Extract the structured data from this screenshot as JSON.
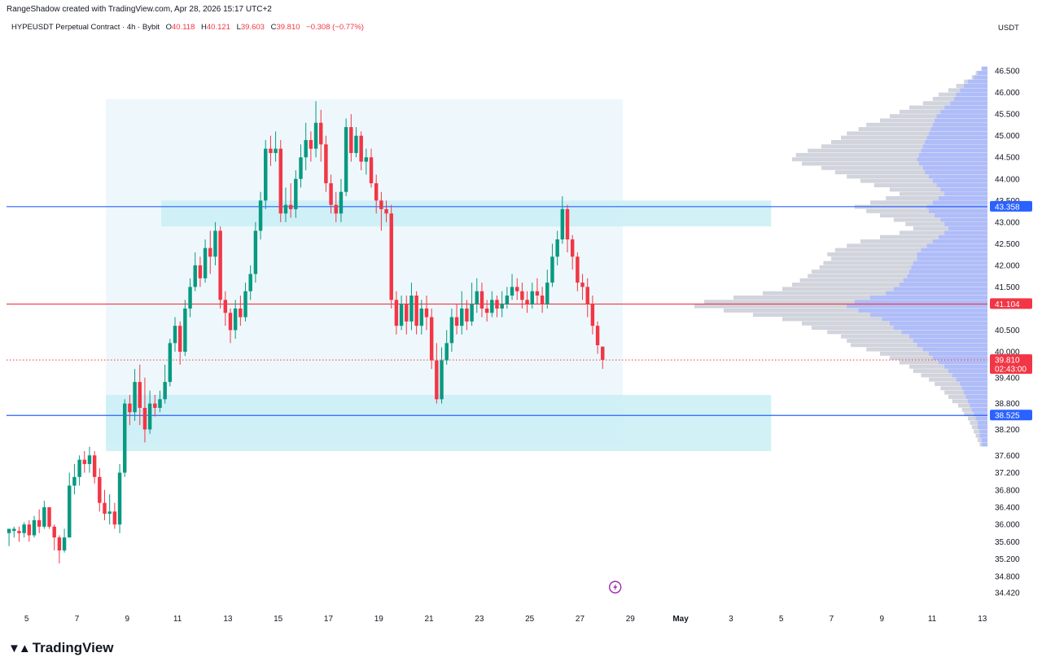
{
  "header": {
    "creator": "RangeShadow created with TradingView.com, Apr 28, 2026 15:17 UTC+2",
    "symbol": "HYPEUSDT Perpetual Contract · 4h · Bybit",
    "open_label": "O",
    "open": "40.118",
    "high_label": "H",
    "high": "40.121",
    "low_label": "L",
    "low": "39.603",
    "close_label": "C",
    "close": "39.810",
    "change": "−0.308 (−0.77%)",
    "currency": "USDT"
  },
  "brand": {
    "name": "TradingView",
    "icon": "tradingview-logo-icon"
  },
  "colors": {
    "up": "#089981",
    "down": "#f23645",
    "zone": "#c9eef6",
    "range_box": "#eef8fc",
    "resistance_line": "#2962ff",
    "poc_line": "#f23645",
    "profile_gray": "#d1d4dc",
    "profile_blue": "#aebcf9"
  },
  "chart_data": {
    "type": "candlestick",
    "title": "HYPEUSDT Perpetual Contract · 4h · Bybit",
    "x_ticks": [
      {
        "d": 5,
        "label": "5"
      },
      {
        "d": 7,
        "label": "7"
      },
      {
        "d": 9,
        "label": "9"
      },
      {
        "d": 11,
        "label": "11"
      },
      {
        "d": 13,
        "label": "13"
      },
      {
        "d": 15,
        "label": "15"
      },
      {
        "d": 17,
        "label": "17"
      },
      {
        "d": 19,
        "label": "19"
      },
      {
        "d": 21,
        "label": "21"
      },
      {
        "d": 23,
        "label": "23"
      },
      {
        "d": 25,
        "label": "25"
      },
      {
        "d": 27,
        "label": "27"
      },
      {
        "d": 29,
        "label": "29"
      },
      {
        "d": 31,
        "label": "May"
      },
      {
        "d": 33,
        "label": "3"
      },
      {
        "d": 35,
        "label": "5"
      },
      {
        "d": 37,
        "label": "7"
      },
      {
        "d": 39,
        "label": "9"
      },
      {
        "d": 41,
        "label": "11"
      },
      {
        "d": 43,
        "label": "13"
      }
    ],
    "y_ticks": [
      "46.500",
      "46.000",
      "45.500",
      "45.000",
      "44.500",
      "44.000",
      "43.500",
      "43.000",
      "42.500",
      "42.000",
      "41.500",
      "40.500",
      "40.000",
      "39.400",
      "38.800",
      "38.200",
      "37.600",
      "37.200",
      "36.800",
      "36.400",
      "36.000",
      "35.600",
      "35.200",
      "34.800",
      "34.420"
    ],
    "ylim": [
      34.1,
      47.2
    ],
    "xlim": [
      4.2,
      43.2
    ],
    "grid": false,
    "price_labels": [
      {
        "value": "43.358",
        "color": "#2962ff"
      },
      {
        "value": "41.104",
        "color": "#f23645"
      },
      {
        "value": "39.810",
        "color": "#f23645",
        "countdown": "02:43:00"
      },
      {
        "value": "38.525",
        "color": "#2962ff"
      }
    ],
    "horizontal_lines": [
      {
        "price": 43.358,
        "color": "#2962ff",
        "style": "solid"
      },
      {
        "price": 41.104,
        "color": "#f23645",
        "style": "solid"
      },
      {
        "price": 38.525,
        "color": "#2962ff",
        "style": "solid"
      },
      {
        "price": 39.81,
        "color": "#f23645",
        "style": "dotted"
      }
    ],
    "zones": [
      {
        "x0": 8.15,
        "x1": 28.7,
        "y0": 37.9,
        "y1": 45.85,
        "kind": "range_box"
      },
      {
        "x0": 10.35,
        "x1": 34.6,
        "y0": 42.9,
        "y1": 43.5,
        "kind": "resistance_zone"
      },
      {
        "x0": 8.15,
        "x1": 34.6,
        "y0": 37.7,
        "y1": 39.0,
        "kind": "support_zone"
      }
    ],
    "anchor_icon": {
      "d": 28.4,
      "price": 34.55,
      "name": "lightning-icon"
    },
    "volume_profile_note": "horizontal volume-by-price profile on the right edge",
    "candles": [
      [
        4.3,
        35.8,
        35.9,
        35.5,
        35.8
      ],
      [
        4.5,
        35.85,
        35.9,
        35.7,
        35.95
      ],
      [
        4.7,
        35.85,
        35.8,
        35.6,
        35.95
      ],
      [
        4.9,
        35.8,
        36.0,
        35.7,
        36.05
      ],
      [
        5.1,
        36.0,
        35.75,
        35.6,
        36.1
      ],
      [
        5.3,
        35.75,
        36.1,
        35.7,
        36.2
      ],
      [
        5.5,
        36.1,
        35.95,
        35.8,
        36.35
      ],
      [
        5.7,
        35.95,
        36.4,
        35.9,
        36.55
      ],
      [
        5.9,
        36.4,
        35.95,
        35.9,
        36.4
      ],
      [
        6.1,
        35.95,
        35.7,
        35.4,
        36.0
      ],
      [
        6.3,
        35.7,
        35.4,
        35.1,
        35.75
      ],
      [
        6.5,
        35.4,
        35.7,
        35.35,
        35.9
      ],
      [
        6.7,
        35.7,
        36.9,
        35.7,
        37.2
      ],
      [
        6.9,
        36.9,
        37.1,
        36.7,
        37.4
      ],
      [
        7.1,
        37.1,
        37.5,
        36.9,
        37.6
      ],
      [
        7.3,
        37.5,
        37.4,
        37.2,
        37.7
      ],
      [
        7.5,
        37.4,
        37.6,
        37.2,
        37.8
      ],
      [
        7.7,
        37.6,
        37.1,
        36.95,
        37.7
      ],
      [
        7.9,
        37.1,
        36.5,
        36.3,
        37.3
      ],
      [
        8.1,
        36.5,
        36.25,
        36.1,
        36.8
      ],
      [
        8.3,
        36.25,
        36.3,
        36.0,
        36.7
      ],
      [
        8.5,
        36.3,
        36.0,
        35.9,
        36.5
      ],
      [
        8.7,
        36.0,
        37.2,
        35.8,
        37.4
      ],
      [
        8.9,
        37.2,
        38.8,
        37.1,
        38.9
      ],
      [
        9.1,
        38.8,
        38.6,
        38.3,
        39.0
      ],
      [
        9.3,
        38.6,
        39.3,
        38.4,
        39.6
      ],
      [
        9.5,
        39.3,
        38.7,
        38.3,
        39.7
      ],
      [
        9.7,
        38.7,
        38.2,
        37.9,
        39.4
      ],
      [
        9.9,
        38.2,
        38.8,
        38.1,
        39.1
      ],
      [
        10.1,
        38.8,
        38.7,
        38.5,
        39.0
      ],
      [
        10.3,
        38.7,
        38.9,
        38.6,
        39.1
      ],
      [
        10.5,
        38.9,
        39.3,
        38.8,
        39.7
      ],
      [
        10.7,
        39.3,
        40.2,
        39.2,
        40.3
      ],
      [
        10.9,
        40.2,
        40.6,
        40.0,
        40.8
      ],
      [
        11.1,
        40.6,
        40.0,
        39.7,
        40.7
      ],
      [
        11.3,
        40.0,
        41.0,
        39.9,
        41.2
      ],
      [
        11.5,
        41.0,
        41.5,
        40.8,
        41.7
      ],
      [
        11.7,
        41.5,
        42.0,
        41.4,
        42.3
      ],
      [
        11.9,
        42.0,
        41.7,
        41.5,
        42.2
      ],
      [
        12.1,
        41.7,
        42.4,
        41.6,
        42.6
      ],
      [
        12.3,
        42.4,
        42.2,
        41.8,
        42.8
      ],
      [
        12.5,
        42.2,
        42.8,
        42.0,
        43.0
      ],
      [
        12.7,
        42.8,
        41.2,
        41.0,
        42.9
      ],
      [
        12.9,
        41.2,
        40.9,
        40.6,
        41.4
      ],
      [
        13.1,
        40.9,
        40.5,
        40.2,
        41.0
      ],
      [
        13.3,
        40.5,
        41.0,
        40.3,
        41.2
      ],
      [
        13.5,
        41.0,
        40.8,
        40.6,
        41.3
      ],
      [
        13.7,
        40.8,
        41.4,
        40.7,
        41.6
      ],
      [
        13.9,
        41.4,
        41.8,
        41.2,
        42.0
      ],
      [
        14.1,
        41.8,
        42.8,
        41.6,
        43.0
      ],
      [
        14.3,
        42.8,
        43.5,
        42.6,
        43.7
      ],
      [
        14.5,
        43.5,
        44.7,
        43.3,
        44.9
      ],
      [
        14.7,
        44.7,
        44.6,
        44.3,
        45.0
      ],
      [
        14.9,
        44.6,
        44.7,
        44.4,
        45.1
      ],
      [
        15.1,
        44.7,
        43.2,
        43.0,
        44.9
      ],
      [
        15.3,
        43.2,
        43.4,
        43.0,
        43.8
      ],
      [
        15.5,
        43.4,
        43.3,
        43.1,
        43.9
      ],
      [
        15.7,
        43.3,
        44.0,
        43.1,
        44.2
      ],
      [
        15.9,
        44.0,
        44.5,
        43.8,
        44.8
      ],
      [
        16.1,
        44.5,
        44.9,
        44.2,
        45.3
      ],
      [
        16.3,
        44.9,
        44.7,
        44.4,
        45.1
      ],
      [
        16.5,
        44.7,
        45.3,
        44.5,
        45.8
      ],
      [
        16.7,
        45.3,
        44.8,
        44.4,
        45.6
      ],
      [
        16.9,
        44.8,
        43.9,
        43.7,
        45.0
      ],
      [
        17.1,
        43.9,
        43.4,
        43.2,
        44.1
      ],
      [
        17.3,
        43.4,
        43.2,
        43.0,
        43.7
      ],
      [
        17.5,
        43.2,
        43.7,
        43.0,
        44.0
      ],
      [
        17.7,
        43.7,
        45.2,
        43.6,
        45.4
      ],
      [
        17.9,
        45.2,
        44.6,
        44.4,
        45.5
      ],
      [
        18.1,
        44.6,
        45.0,
        44.5,
        45.2
      ],
      [
        18.3,
        45.0,
        44.4,
        44.2,
        45.1
      ],
      [
        18.5,
        44.4,
        44.5,
        44.1,
        44.7
      ],
      [
        18.7,
        44.5,
        43.9,
        43.8,
        44.7
      ],
      [
        18.9,
        43.9,
        43.5,
        43.2,
        44.1
      ],
      [
        19.1,
        43.5,
        43.3,
        42.8,
        43.7
      ],
      [
        19.3,
        43.3,
        43.2,
        43.0,
        43.5
      ],
      [
        19.5,
        43.2,
        41.2,
        41.0,
        43.4
      ],
      [
        19.7,
        41.2,
        40.6,
        40.4,
        41.4
      ],
      [
        19.9,
        40.6,
        41.1,
        40.5,
        41.3
      ],
      [
        20.1,
        41.1,
        40.7,
        40.4,
        41.3
      ],
      [
        20.3,
        40.7,
        41.3,
        40.5,
        41.6
      ],
      [
        20.5,
        41.3,
        40.6,
        40.4,
        41.4
      ],
      [
        20.7,
        40.6,
        41.0,
        40.4,
        41.2
      ],
      [
        20.9,
        41.0,
        40.8,
        40.5,
        41.3
      ],
      [
        21.1,
        40.8,
        39.8,
        39.6,
        41.0
      ],
      [
        21.3,
        39.8,
        38.9,
        38.8,
        40.2
      ],
      [
        21.5,
        38.9,
        39.8,
        38.8,
        40.1
      ],
      [
        21.7,
        39.8,
        40.2,
        39.7,
        40.5
      ],
      [
        21.9,
        40.2,
        40.8,
        40.0,
        41.0
      ],
      [
        22.1,
        40.8,
        40.6,
        40.4,
        41.1
      ],
      [
        22.3,
        40.6,
        41.0,
        40.4,
        41.4
      ],
      [
        22.5,
        41.0,
        40.7,
        40.5,
        41.2
      ],
      [
        22.7,
        40.7,
        41.1,
        40.6,
        41.6
      ],
      [
        22.9,
        41.1,
        41.4,
        40.9,
        41.7
      ],
      [
        23.1,
        41.4,
        41.0,
        40.8,
        41.6
      ],
      [
        23.3,
        41.0,
        40.9,
        40.7,
        41.2
      ],
      [
        23.5,
        40.9,
        41.2,
        40.8,
        41.4
      ],
      [
        23.7,
        41.2,
        41.0,
        40.8,
        41.3
      ],
      [
        23.9,
        41.0,
        41.1,
        40.8,
        41.4
      ],
      [
        24.1,
        41.1,
        41.3,
        41.0,
        41.5
      ],
      [
        24.3,
        41.3,
        41.5,
        41.2,
        41.8
      ],
      [
        24.5,
        41.5,
        41.4,
        41.2,
        41.7
      ],
      [
        24.7,
        41.4,
        41.2,
        41.0,
        41.6
      ],
      [
        24.9,
        41.2,
        41.1,
        40.9,
        41.4
      ],
      [
        25.1,
        41.1,
        41.4,
        41.0,
        41.6
      ],
      [
        25.3,
        41.4,
        41.3,
        41.1,
        41.7
      ],
      [
        25.5,
        41.3,
        41.1,
        40.9,
        41.5
      ],
      [
        25.7,
        41.1,
        41.6,
        41.0,
        41.9
      ],
      [
        25.9,
        41.6,
        42.2,
        41.5,
        42.5
      ],
      [
        26.1,
        42.2,
        42.6,
        42.0,
        42.8
      ],
      [
        26.3,
        42.6,
        43.3,
        42.5,
        43.6
      ],
      [
        26.5,
        43.3,
        42.6,
        42.3,
        43.4
      ],
      [
        26.7,
        42.6,
        42.2,
        41.9,
        42.7
      ],
      [
        26.9,
        42.2,
        41.6,
        41.4,
        42.3
      ],
      [
        27.1,
        41.6,
        41.5,
        41.2,
        41.8
      ],
      [
        27.3,
        41.5,
        41.1,
        40.8,
        41.7
      ],
      [
        27.5,
        41.1,
        40.6,
        40.4,
        41.3
      ],
      [
        27.7,
        40.6,
        40.15,
        39.95,
        40.7
      ],
      [
        27.9,
        40.118,
        39.81,
        39.603,
        40.121
      ]
    ],
    "volume_profile": [
      [
        46.55,
        0.03,
        0.03
      ],
      [
        46.45,
        0.06,
        0.05
      ],
      [
        46.35,
        0.08,
        0.07
      ],
      [
        46.25,
        0.12,
        0.1
      ],
      [
        46.15,
        0.16,
        0.12
      ],
      [
        46.05,
        0.2,
        0.14
      ],
      [
        45.95,
        0.25,
        0.16
      ],
      [
        45.85,
        0.28,
        0.17
      ],
      [
        45.75,
        0.33,
        0.19
      ],
      [
        45.65,
        0.4,
        0.22
      ],
      [
        45.55,
        0.45,
        0.24
      ],
      [
        45.45,
        0.5,
        0.26
      ],
      [
        45.35,
        0.55,
        0.27
      ],
      [
        45.25,
        0.62,
        0.28
      ],
      [
        45.15,
        0.66,
        0.29
      ],
      [
        45.05,
        0.72,
        0.3
      ],
      [
        44.95,
        0.75,
        0.31
      ],
      [
        44.85,
        0.8,
        0.32
      ],
      [
        44.75,
        0.85,
        0.33
      ],
      [
        44.65,
        0.92,
        0.34
      ],
      [
        44.55,
        0.98,
        0.35
      ],
      [
        44.45,
        1.0,
        0.36
      ],
      [
        44.35,
        0.95,
        0.35
      ],
      [
        44.25,
        0.85,
        0.33
      ],
      [
        44.15,
        0.78,
        0.32
      ],
      [
        44.05,
        0.72,
        0.3
      ],
      [
        43.95,
        0.65,
        0.28
      ],
      [
        43.85,
        0.58,
        0.26
      ],
      [
        43.75,
        0.5,
        0.24
      ],
      [
        43.65,
        0.45,
        0.22
      ],
      [
        43.55,
        0.52,
        0.25
      ],
      [
        43.45,
        0.6,
        0.28
      ],
      [
        43.35,
        0.68,
        0.31
      ],
      [
        43.25,
        0.62,
        0.3
      ],
      [
        43.15,
        0.55,
        0.27
      ],
      [
        43.05,
        0.48,
        0.24
      ],
      [
        42.95,
        0.42,
        0.22
      ],
      [
        42.85,
        0.38,
        0.2
      ],
      [
        42.75,
        0.45,
        0.22
      ],
      [
        42.65,
        0.55,
        0.25
      ],
      [
        42.55,
        0.65,
        0.28
      ],
      [
        42.45,
        0.72,
        0.31
      ],
      [
        42.35,
        0.78,
        0.34
      ],
      [
        42.25,
        0.82,
        0.36
      ],
      [
        42.15,
        0.8,
        0.36
      ],
      [
        42.05,
        0.84,
        0.38
      ],
      [
        41.95,
        0.86,
        0.39
      ],
      [
        41.85,
        0.9,
        0.4
      ],
      [
        41.75,
        0.92,
        0.41
      ],
      [
        41.65,
        0.96,
        0.43
      ],
      [
        41.55,
        1.0,
        0.45
      ],
      [
        41.45,
        1.05,
        0.48
      ],
      [
        41.35,
        1.15,
        0.52
      ],
      [
        41.25,
        1.3,
        0.6
      ],
      [
        41.15,
        1.45,
        0.68
      ],
      [
        41.05,
        1.5,
        0.72
      ],
      [
        40.95,
        1.35,
        0.66
      ],
      [
        40.85,
        1.2,
        0.6
      ],
      [
        40.75,
        1.05,
        0.54
      ],
      [
        40.65,
        0.95,
        0.5
      ],
      [
        40.55,
        0.9,
        0.48
      ],
      [
        40.45,
        0.82,
        0.44
      ],
      [
        40.35,
        0.75,
        0.4
      ],
      [
        40.25,
        0.72,
        0.38
      ],
      [
        40.15,
        0.7,
        0.36
      ],
      [
        40.05,
        0.62,
        0.33
      ],
      [
        39.95,
        0.55,
        0.3
      ],
      [
        39.85,
        0.5,
        0.28
      ],
      [
        39.75,
        0.45,
        0.25
      ],
      [
        39.65,
        0.4,
        0.22
      ],
      [
        39.55,
        0.38,
        0.2
      ],
      [
        39.45,
        0.34,
        0.18
      ],
      [
        39.35,
        0.3,
        0.16
      ],
      [
        39.25,
        0.27,
        0.14
      ],
      [
        39.15,
        0.24,
        0.13
      ],
      [
        39.05,
        0.22,
        0.12
      ],
      [
        38.95,
        0.2,
        0.11
      ],
      [
        38.85,
        0.18,
        0.1
      ],
      [
        38.75,
        0.15,
        0.09
      ],
      [
        38.65,
        0.13,
        0.08
      ],
      [
        38.55,
        0.12,
        0.07
      ],
      [
        38.45,
        0.1,
        0.06
      ],
      [
        38.35,
        0.09,
        0.05
      ],
      [
        38.25,
        0.08,
        0.05
      ],
      [
        38.15,
        0.07,
        0.04
      ],
      [
        38.05,
        0.06,
        0.04
      ],
      [
        37.95,
        0.05,
        0.03
      ],
      [
        37.85,
        0.04,
        0.03
      ]
    ]
  }
}
